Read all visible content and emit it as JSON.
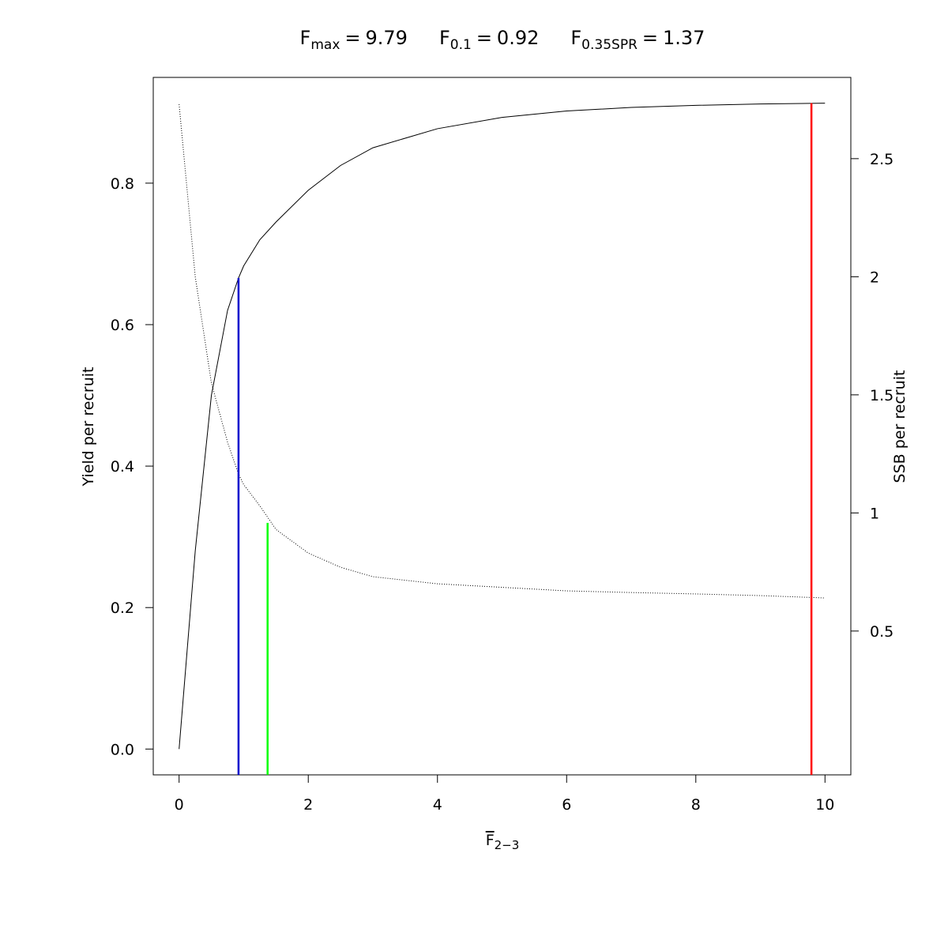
{
  "chart_data": {
    "type": "line",
    "title": [
      {
        "symbol": "F",
        "subscript": "max",
        "relation": "=",
        "value": 9.79,
        "color": "#ff0000",
        "top": 0.913,
        "axis": "y"
      },
      {
        "symbol": "F",
        "subscript": "0.1",
        "relation": "=",
        "value": 0.92,
        "color": "#0000cd",
        "top": 0.666,
        "axis": "y"
      },
      {
        "symbol": "F",
        "subscript": "0.35SPR",
        "relation": "=",
        "value": 1.37,
        "color": "#00ff00",
        "top": 0.958,
        "axis": "y2"
      }
    ],
    "x_label": {
      "symbol": "F",
      "subscript": "2−3"
    },
    "y_label": "Yield per recruit",
    "y2_label": "SSB per recruit",
    "x": [
      0,
      0.25,
      0.5,
      0.75,
      0.92,
      1,
      1.25,
      1.5,
      2,
      2.5,
      3,
      4,
      5,
      6,
      7,
      8,
      9,
      10
    ],
    "series": [
      {
        "color": "#000000",
        "dash": "solid",
        "axis": "y",
        "values": [
          0,
          0.28,
          0.5,
          0.62,
          0.666,
          0.683,
          0.72,
          0.745,
          0.79,
          0.825,
          0.85,
          0.877,
          0.893,
          0.902,
          0.907,
          0.91,
          0.912,
          0.913
        ]
      },
      {
        "color": "#000000",
        "dash": "dotted",
        "axis": "y2",
        "values": [
          2.73,
          2.0,
          1.55,
          1.3,
          1.165,
          1.12,
          1.03,
          0.93,
          0.83,
          0.77,
          0.73,
          0.7,
          0.685,
          0.67,
          0.663,
          0.657,
          0.65,
          0.64
        ]
      }
    ],
    "xlim": [
      -0.4,
      10.4
    ],
    "xticks": [
      0,
      2,
      4,
      6,
      8,
      10
    ],
    "ylim": [
      -0.0365,
      0.9495
    ],
    "yticks": [
      {
        "value": 0,
        "label": "0.0"
      },
      0.2,
      0.4,
      0.6,
      0.8
    ],
    "y2lim": [
      -0.109,
      2.844
    ],
    "y2ticks": [
      0.5,
      1,
      1.5,
      2,
      2.5
    ],
    "grid": false
  }
}
